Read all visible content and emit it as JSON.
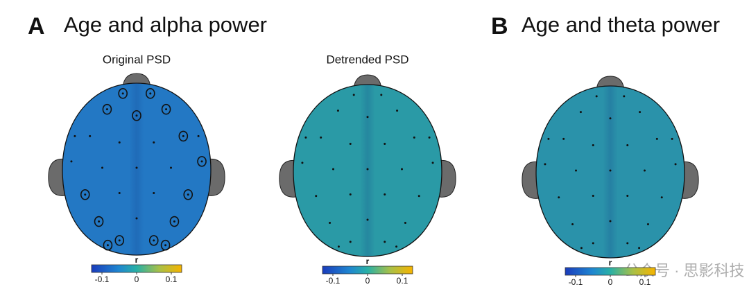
{
  "panels": [
    {
      "letter": "A",
      "title": "Age and alpha power"
    },
    {
      "letter": "B",
      "title": "Age and theta power"
    }
  ],
  "chart_data": [
    {
      "type": "topomap",
      "title": "Original PSD",
      "color": "#2378c4",
      "colorbar": {
        "label": "r",
        "lim": [
          -0.13,
          0.13
        ],
        "ticks": [
          -0.1,
          0,
          0.1
        ]
      }
    },
    {
      "type": "topomap",
      "title": "Detrended PSD",
      "color": "#2a9aa6",
      "colorbar": {
        "label": "r",
        "lim": [
          -0.13,
          0.13
        ],
        "ticks": [
          -0.1,
          0,
          0.1
        ]
      }
    },
    {
      "type": "topomap",
      "color": "#2a92aa",
      "colorbar": {
        "label": "r",
        "lim": [
          -0.13,
          0.13
        ],
        "ticks": [
          -0.1,
          0,
          0.1
        ]
      }
    }
  ],
  "watermark": "公众号 · 思影科技"
}
